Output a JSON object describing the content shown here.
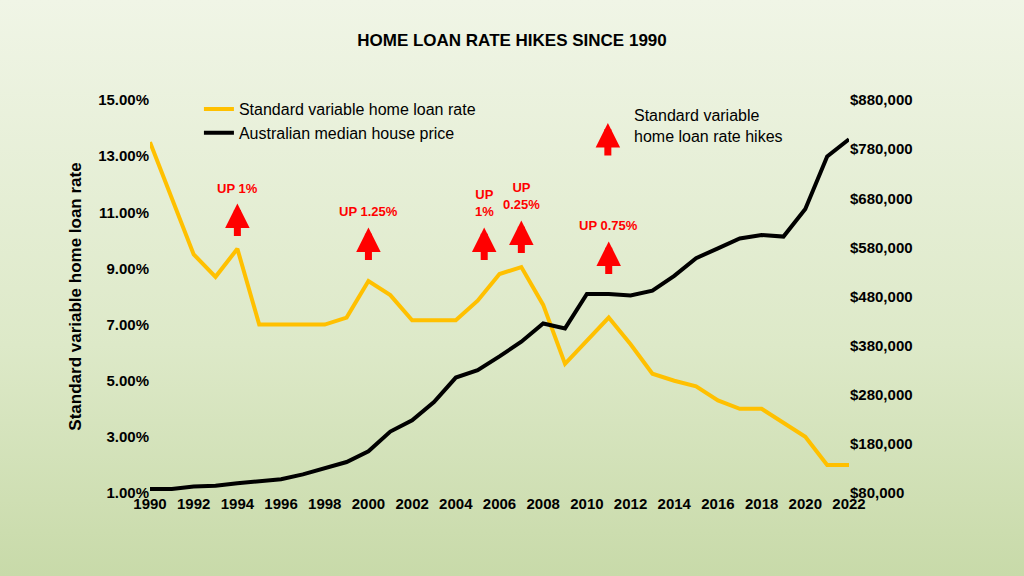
{
  "chart_data": {
    "type": "line",
    "title": "HOME LOAN RATE HIKES SINCE 1990",
    "y_label": "Standard variable home loan rate",
    "x": [
      1990,
      1991,
      1992,
      1993,
      1994,
      1995,
      1996,
      1997,
      1998,
      1999,
      2000,
      2001,
      2002,
      2003,
      2004,
      2005,
      2006,
      2007,
      2008,
      2009,
      2010,
      2011,
      2012,
      2013,
      2014,
      2015,
      2016,
      2017,
      2018,
      2019,
      2020,
      2021,
      2022
    ],
    "xlim": [
      1990,
      2022
    ],
    "xticks": [
      1990,
      1992,
      1994,
      1996,
      1998,
      2000,
      2002,
      2004,
      2006,
      2008,
      2010,
      2012,
      2014,
      2016,
      2018,
      2020,
      2022
    ],
    "ylim": [
      1,
      15
    ],
    "yticks": [
      {
        "value": 1,
        "label": "1.00%"
      },
      {
        "value": 3,
        "label": "3.00%"
      },
      {
        "value": 5,
        "label": "5.00%"
      },
      {
        "value": 7,
        "label": "7.00%"
      },
      {
        "value": 9,
        "label": "9.00%"
      },
      {
        "value": 11,
        "label": "11.00%"
      },
      {
        "value": 13,
        "label": "13.00%"
      },
      {
        "value": 15,
        "label": "15.00%"
      }
    ],
    "y2lim": [
      80000,
      880000
    ],
    "y2ticks": [
      {
        "value": 80000,
        "label": "$80,000"
      },
      {
        "value": 180000,
        "label": "$180,000"
      },
      {
        "value": 280000,
        "label": "$280,000"
      },
      {
        "value": 380000,
        "label": "$380,000"
      },
      {
        "value": 480000,
        "label": "$480,000"
      },
      {
        "value": 580000,
        "label": "$580,000"
      },
      {
        "value": 680000,
        "label": "$680,000"
      },
      {
        "value": 780000,
        "label": "$780,000"
      },
      {
        "value": 880000,
        "label": "$880,000"
      }
    ],
    "grid": false,
    "legend": "top left",
    "series": [
      {
        "name": "Standard variable home loan rate",
        "color": "#ffc000",
        "values": [
          13.5,
          11.5,
          9.5,
          8.7,
          9.7,
          7.0,
          7.0,
          7.0,
          7.0,
          7.25,
          8.55,
          8.05,
          7.15,
          7.15,
          7.15,
          7.85,
          8.8,
          9.05,
          7.7,
          5.6,
          6.4,
          7.25,
          6.3,
          5.25,
          5.0,
          4.8,
          4.3,
          4.0,
          4.0,
          3.5,
          3.0,
          2.0,
          2.0
        ]
      },
      {
        "name": "Australian median house price",
        "color": "#000000",
        "axis": "y2",
        "values": [
          88000,
          88000,
          93000,
          95000,
          100000,
          103000,
          108000,
          118000,
          130000,
          143000,
          165000,
          205000,
          228000,
          265000,
          315000,
          330000,
          358000,
          388000,
          425000,
          415000,
          485000,
          485000,
          482000,
          492000,
          522000,
          558000,
          578000,
          598000,
          605000,
          602000,
          658000,
          765000,
          800000
        ]
      }
    ],
    "annotations": [
      {
        "text": "UP 1%",
        "x": 1994,
        "y": 10.1
      },
      {
        "text": "UP 1.25%",
        "x": 2000,
        "y": 9.25
      },
      {
        "text": "UP\n1%",
        "x": 2005.3,
        "y": 9.25
      },
      {
        "text": "UP\n0.25%",
        "x": 2007,
        "y": 9.5
      },
      {
        "text": "UP 0.75%",
        "x": 2011,
        "y": 8.75
      }
    ],
    "hike_label": "Standard variable\nhome loan rate hikes"
  }
}
